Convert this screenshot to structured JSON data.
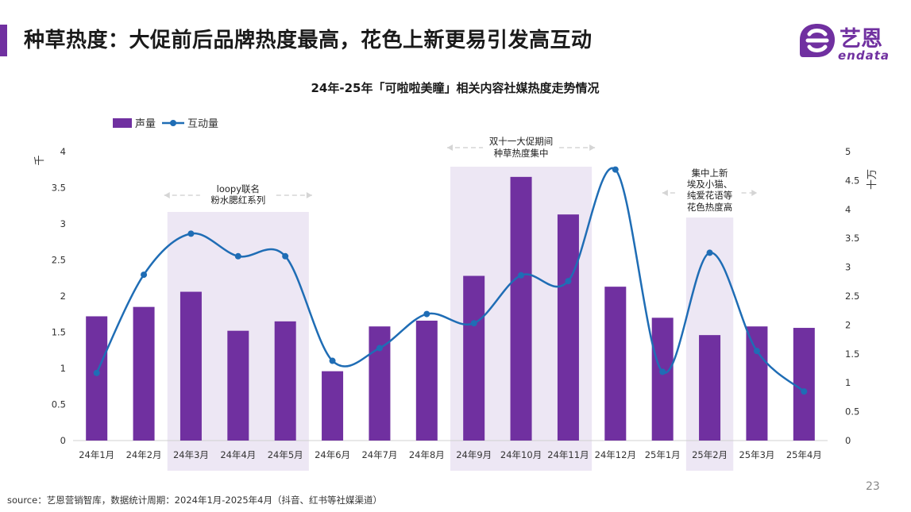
{
  "header": {
    "title": "种草热度：大促前后品牌热度最高，花色上新更易引发高互动"
  },
  "logo": {
    "cn_text": "艺恩",
    "en_text": "endata"
  },
  "colors": {
    "accent": "#7030A0",
    "bar": "#7030A0",
    "line": "#1F6DB5",
    "highlight": "#EDE7F4",
    "arrow": "#D5D5D5"
  },
  "chart_data": {
    "type": "bar",
    "title": "24年-25年「可啦啦美瞳」相关内容社媒热度走势情况",
    "categories": [
      "24年1月",
      "24年2月",
      "24年3月",
      "24年4月",
      "24年5月",
      "24年6月",
      "24年7月",
      "24年8月",
      "24年9月",
      "24年10月",
      "24年11月",
      "24年12月",
      "25年1月",
      "25年2月",
      "25年3月",
      "25年4月"
    ],
    "series": [
      {
        "name": "声量",
        "type": "bar",
        "axis": "left",
        "values": [
          1.72,
          1.85,
          2.06,
          1.52,
          1.65,
          0.96,
          1.58,
          1.66,
          2.28,
          3.65,
          3.13,
          2.13,
          1.7,
          1.46,
          1.58,
          1.56
        ]
      },
      {
        "name": "互动量",
        "type": "line",
        "axis": "right",
        "smooth": true,
        "values": [
          1.17,
          2.87,
          3.58,
          3.19,
          3.19,
          1.38,
          1.6,
          2.19,
          2.03,
          2.86,
          2.76,
          4.69,
          1.19,
          3.25,
          1.55,
          0.85
        ]
      }
    ],
    "y_left": {
      "label": "千",
      "range": [
        0,
        4
      ],
      "ticks": [
        "0",
        "0.5",
        "1",
        "1.5",
        "2",
        "2.5",
        "3",
        "3.5",
        "4"
      ]
    },
    "y_right": {
      "label": "十万",
      "range": [
        0,
        5
      ],
      "ticks": [
        "0",
        "0.5",
        "1",
        "1.5",
        "2",
        "2.5",
        "3",
        "3.5",
        "4",
        "4.5",
        "5"
      ]
    },
    "legend": {
      "position": "top-left",
      "items": [
        "声量",
        "互动量"
      ]
    },
    "highlights": [
      {
        "from": 2,
        "to": 4,
        "lines": [
          "loopy联名",
          "粉水腮红系列"
        ]
      },
      {
        "from": 8,
        "to": 10,
        "lines": [
          "双十一大促期间",
          "种草热度集中"
        ]
      },
      {
        "from": 13,
        "to": 13,
        "lines": [
          "集中上新",
          "埃及小猫、",
          "纯爱花语等",
          "花色热度高"
        ]
      }
    ]
  },
  "footer": {
    "source": "source：艺恩营销智库，数据统计周期：2024年1月-2025年4月（抖音、红书等社媒渠道）",
    "page_number": "23"
  }
}
